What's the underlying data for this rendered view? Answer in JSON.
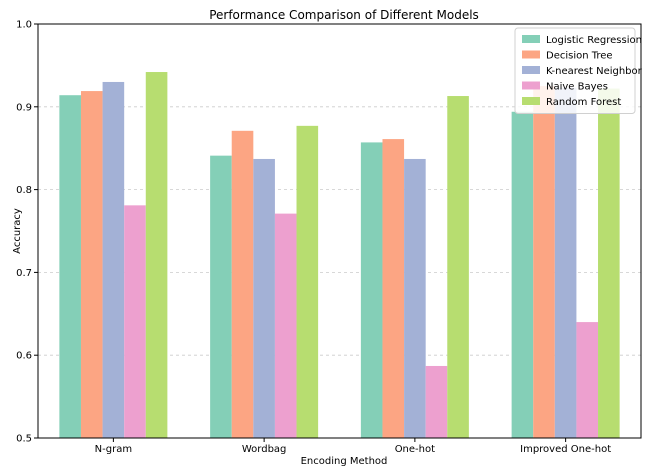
{
  "chart_data": {
    "type": "bar",
    "title": "Performance Comparison of Different Models",
    "xlabel": "Encoding Method",
    "ylabel": "Accuracy",
    "ylim": [
      0.5,
      1.0
    ],
    "yticks": [
      "0.5",
      "0.6",
      "0.7",
      "0.8",
      "0.9",
      "1.0"
    ],
    "grid": "horizontal dashed",
    "legend_position": "top-right",
    "categories": [
      "N-gram",
      "Wordbag",
      "One-hot",
      "Improved One-hot"
    ],
    "series": [
      {
        "name": "Logistic Regression",
        "color": "#84cfb7",
        "values": [
          0.914,
          0.841,
          0.857,
          0.894
        ]
      },
      {
        "name": "Decision Tree",
        "color": "#fca583",
        "values": [
          0.919,
          0.871,
          0.861,
          0.925
        ]
      },
      {
        "name": "K-nearest Neighbor",
        "color": "#a3b1d6",
        "values": [
          0.93,
          0.837,
          0.837,
          0.923
        ]
      },
      {
        "name": "Naive Bayes",
        "color": "#eda0cf",
        "values": [
          0.781,
          0.771,
          0.587,
          0.64
        ]
      },
      {
        "name": "Random Forest",
        "color": "#b7dd70",
        "values": [
          0.942,
          0.877,
          0.913,
          0.922
        ]
      }
    ]
  }
}
